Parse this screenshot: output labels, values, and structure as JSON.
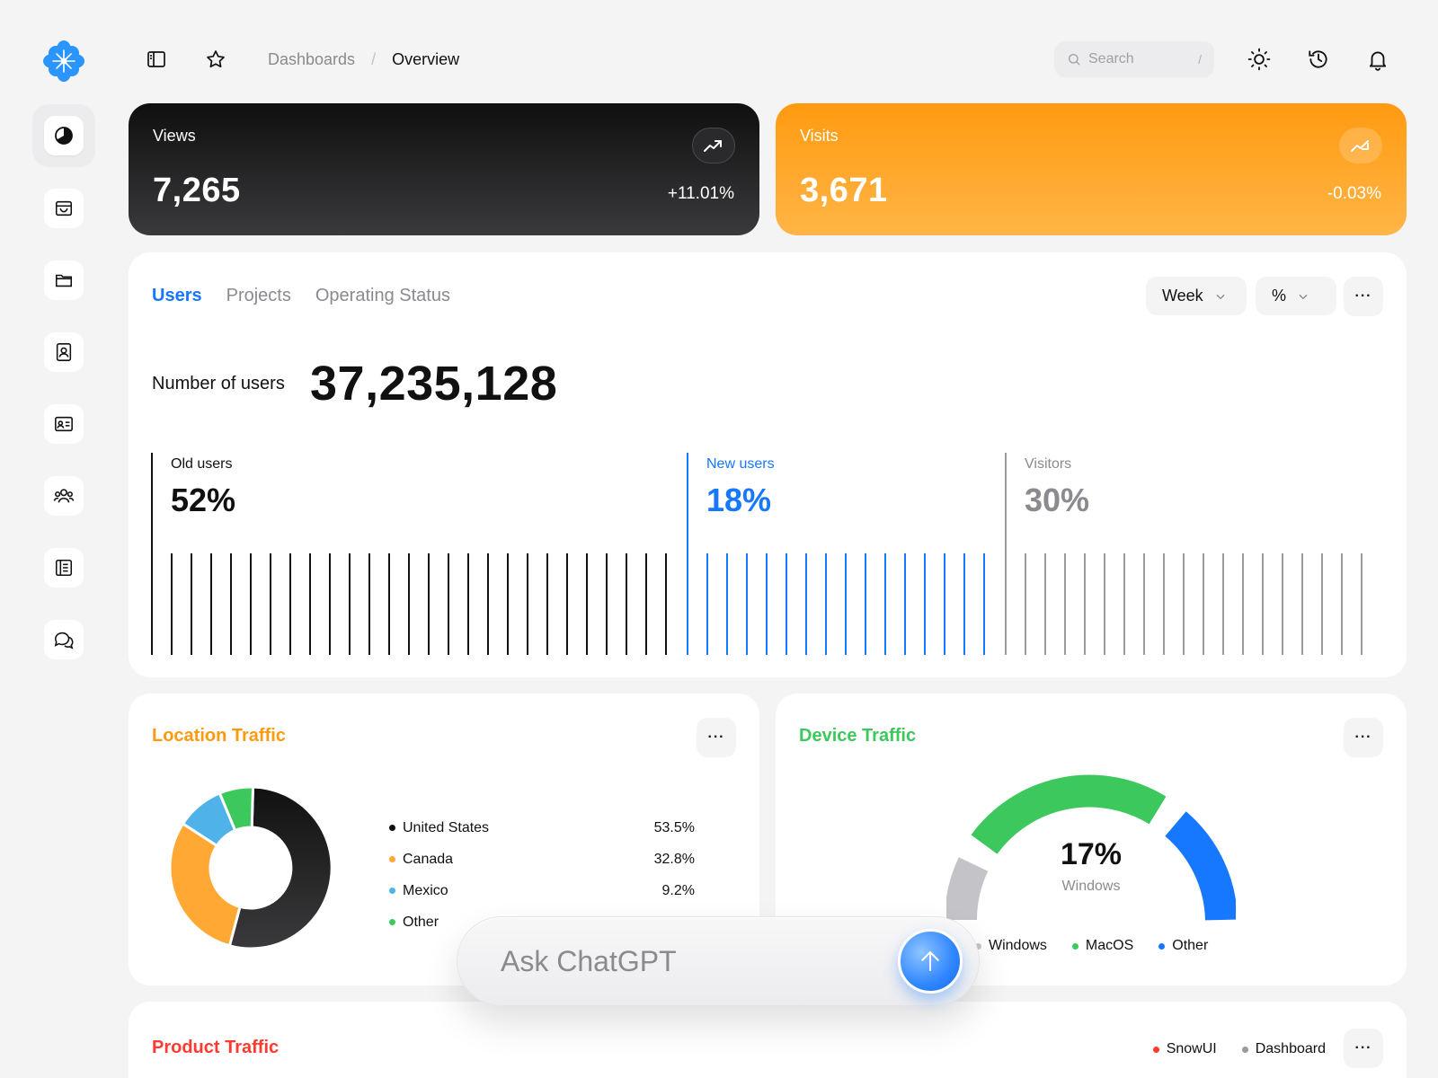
{
  "breadcrumb": {
    "parent": "Dashboards",
    "separator": "/",
    "current": "Overview"
  },
  "search": {
    "placeholder": "Search",
    "shortcut": "/"
  },
  "kpis": [
    {
      "label": "Views",
      "value": "7,265",
      "change": "+11.01%",
      "trend": "up",
      "color": "#111111"
    },
    {
      "label": "Visits",
      "value": "3,671",
      "change": "-0.03%",
      "trend": "down",
      "color": "#ff9a10"
    }
  ],
  "users_panel": {
    "tabs": [
      "Users",
      "Projects",
      "Operating Status"
    ],
    "active_tab": "Users",
    "period": "Week",
    "unit": "%",
    "more": "···",
    "number_label": "Number of users",
    "number_value": "37,235,128",
    "segments": [
      {
        "title": "Old users",
        "pct": "52%",
        "color": "#111111"
      },
      {
        "title": "New users",
        "pct": "18%",
        "color": "#1677ff"
      },
      {
        "title": "Visitors",
        "pct": "30%",
        "color": "#9a9aa0"
      }
    ]
  },
  "location_traffic": {
    "title": "Location Traffic",
    "more": "···",
    "items": [
      {
        "name": "United States",
        "value": "53.5%",
        "color": "#111111"
      },
      {
        "name": "Canada",
        "value": "32.8%",
        "color": "#ffa834"
      },
      {
        "name": "Mexico",
        "value": "9.2%",
        "color": "#4fb3ea"
      },
      {
        "name": "Other",
        "value": "",
        "color": "#3cc85c"
      }
    ]
  },
  "device_traffic": {
    "title": "Device Traffic",
    "more": "···",
    "center_value": "17%",
    "center_label": "Windows",
    "legend": [
      {
        "name": "Windows",
        "color": "#c4c4c8"
      },
      {
        "name": "MacOS",
        "color": "#3cc85c"
      },
      {
        "name": "Other",
        "color": "#1677ff"
      }
    ]
  },
  "product_traffic": {
    "title": "Product Traffic",
    "more": "···",
    "legend": [
      {
        "name": "SnowUI",
        "color": "#ff3b30"
      },
      {
        "name": "Dashboard",
        "color": "#9a9aa0"
      }
    ]
  },
  "chat": {
    "placeholder": "Ask ChatGPT"
  },
  "colors": {
    "accent": "#1677ff",
    "orange": "#ff9a10",
    "green": "#3cc85c",
    "red": "#ff3b30"
  }
}
